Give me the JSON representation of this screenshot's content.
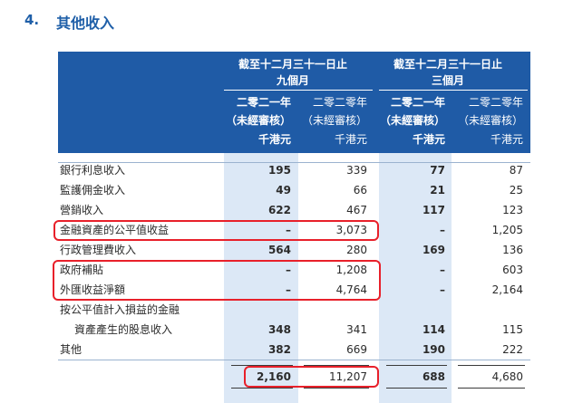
{
  "section": {
    "number": "4.",
    "title": "其他收入"
  },
  "header": {
    "group_left": {
      "line1": "截至十二月三十一日止",
      "line2": "九個月"
    },
    "group_right": {
      "line1": "截至十二月三十一日止",
      "line2": "三個月"
    },
    "columns": [
      {
        "year": "二零二一年",
        "status": "（未經審核）",
        "unit": "千港元"
      },
      {
        "year": "二零二零年",
        "status": "（未經審核）",
        "unit": "千港元"
      },
      {
        "year": "二零二一年",
        "status": "（未經審核）",
        "unit": "千港元"
      },
      {
        "year": "二零二零年",
        "status": "（未經審核）",
        "unit": "千港元"
      }
    ]
  },
  "rows": [
    {
      "label": "銀行利息收入",
      "values": [
        "195",
        "339",
        "77",
        "87"
      ]
    },
    {
      "label": "監護佣金收入",
      "values": [
        "49",
        "66",
        "21",
        "25"
      ]
    },
    {
      "label": "營銷收入",
      "values": [
        "622",
        "467",
        "117",
        "123"
      ]
    },
    {
      "label": "金融資產的公平值收益",
      "values": [
        "–",
        "3,073",
        "–",
        "1,205"
      ]
    },
    {
      "label": "行政管理費收入",
      "values": [
        "564",
        "280",
        "169",
        "136"
      ]
    },
    {
      "label": "政府補貼",
      "values": [
        "–",
        "1,208",
        "–",
        "603"
      ]
    },
    {
      "label": "外匯收益淨額",
      "values": [
        "–",
        "4,764",
        "–",
        "2,164"
      ]
    },
    {
      "label": "按公平值計入損益的金融",
      "values": [
        "",
        "",
        "",
        ""
      ]
    },
    {
      "label": "資產產生的股息收入",
      "values": [
        "348",
        "341",
        "114",
        "115"
      ]
    },
    {
      "label": "其他",
      "values": [
        "382",
        "669",
        "190",
        "222"
      ]
    }
  ],
  "total": {
    "values": [
      "2,160",
      "11,207",
      "688",
      "4,680"
    ]
  },
  "highlight_color": "#e8202a",
  "header_color": "#1f5ba6",
  "shade_color": "#dce8f6"
}
